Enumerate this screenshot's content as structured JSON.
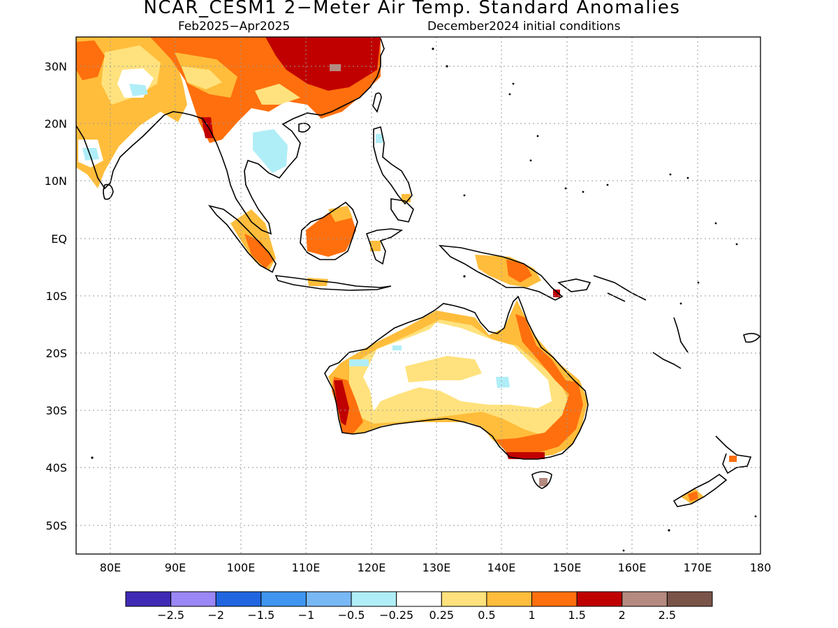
{
  "title": "NCAR_CESM1 2−Meter Air Temp. Standard Anomalies",
  "subtitle_left": "Feb2025−Apr2025",
  "subtitle_right": "December2024 initial conditions",
  "lat_labels": [
    "30N",
    "20N",
    "10N",
    "EQ",
    "10S",
    "20S",
    "30S",
    "40S",
    "50S"
  ],
  "lon_labels": [
    "80E",
    "90E",
    "100E",
    "110E",
    "120E",
    "130E",
    "140E",
    "150E",
    "160E",
    "170E",
    "180"
  ],
  "colorbar": {
    "colors": [
      "#3f2bb5",
      "#9b87f5",
      "#2166e0",
      "#3f95ef",
      "#78b8f5",
      "#b0eef7",
      "#ffffff",
      "#ffe27d",
      "#ffbd3b",
      "#ff6f0d",
      "#c00000",
      "#b58a80",
      "#7a5448"
    ],
    "labels": [
      "−2.5",
      "−2",
      "−1.5",
      "−1",
      "−0.5",
      "−0.25",
      "0.25",
      "0.5",
      "1",
      "1.5",
      "2",
      "2.5"
    ]
  }
}
